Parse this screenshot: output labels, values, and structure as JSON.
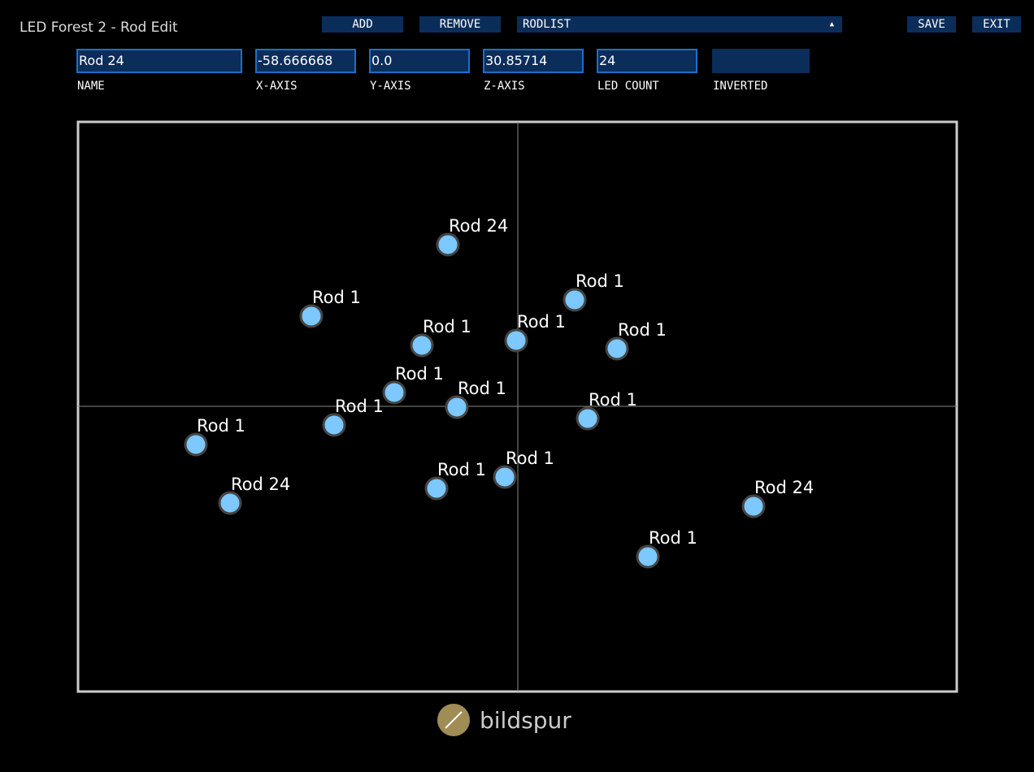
{
  "header": {
    "title": "LED Forest 2 - Rod Edit"
  },
  "toolbar": {
    "add": "ADD",
    "remove": "REMOVE",
    "rodlist": "RODLIST",
    "save": "SAVE",
    "exit": "EXIT"
  },
  "fields": [
    {
      "value": "Rod 24",
      "label": "NAME"
    },
    {
      "value": "-58.666668",
      "label": "X-AXIS"
    },
    {
      "value": "0.0",
      "label": "Y-AXIS"
    },
    {
      "value": "30.85714",
      "label": "Z-AXIS"
    },
    {
      "value": "24",
      "label": "LED COUNT"
    },
    {
      "value": "",
      "label": "INVERTED"
    }
  ],
  "rods": [
    "Rod 24",
    "Rod 1",
    "Rod 1",
    "Rod 1",
    "Rod 1",
    "Rod 1",
    "Rod 1",
    "Rod 1",
    "Rod 1",
    "Rod 1",
    "Rod 1",
    "Rod 24",
    "Rod 1",
    "Rod 1",
    "Rod 24",
    "Rod 1"
  ],
  "footer": {
    "logo": "bildspur"
  }
}
